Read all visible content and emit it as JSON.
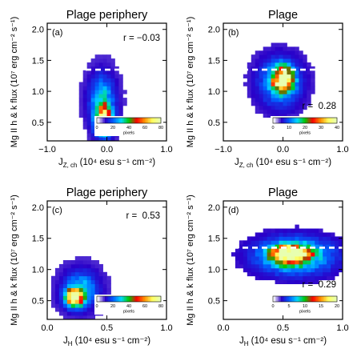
{
  "figure": {
    "background": "#ffffff",
    "dash_color": "#ffffff",
    "colormap": [
      "#ffffff",
      "#2a00c8",
      "#0060ff",
      "#00d8ff",
      "#00c800",
      "#ff0000",
      "#ff9000",
      "#ffff60",
      "#e8ffb0"
    ]
  },
  "chart_data": [
    {
      "type": "heatmap",
      "id": "a",
      "title": "Plage periphery",
      "panel_label": "(a)",
      "annotation": "r = −0.03",
      "xlabel": "J_Z,ch (10^4 esu s^-1 cm^-2)",
      "xlabel_main": "J",
      "xlabel_sub": "Z, ch",
      "xlabel_rest": " (10⁴ esu s⁻¹ cm⁻²)",
      "ylabel": "Mg II h & k flux (10⁷ erg cm⁻² s⁻¹)",
      "xlim": [
        -1.0,
        1.0
      ],
      "ylim": [
        0.2,
        2.1
      ],
      "xticks": [
        -1.0,
        0.0,
        1.0
      ],
      "xticklabels": [
        "−1.0",
        "0.0",
        "1.0"
      ],
      "yticks": [
        0.5,
        1.0,
        1.5,
        2.0
      ],
      "yticklabels": [
        "0.5",
        "1.0",
        "1.5",
        "2.0"
      ],
      "threshold_y": 1.35,
      "colorbar": {
        "ticks": [
          0,
          20,
          40,
          60,
          80
        ],
        "label": "pixels"
      },
      "density": {
        "peaks": [
          {
            "x": -0.05,
            "y": 0.52,
            "sx": 0.09,
            "sy": 0.14,
            "amp": 80
          },
          {
            "x": -0.08,
            "y": 0.85,
            "sx": 0.13,
            "sy": 0.25,
            "amp": 28
          }
        ]
      }
    },
    {
      "type": "heatmap",
      "id": "b",
      "title": "Plage",
      "panel_label": "(b)",
      "annotation": "r =  0.28",
      "xlabel": "J_Z,ch (10^4 esu s^-1 cm^-2)",
      "xlabel_main": "J",
      "xlabel_sub": "Z, ch",
      "xlabel_rest": " (10⁴ esu s⁻¹ cm⁻²)",
      "ylabel": "Mg II h & k flux (10⁷ erg cm⁻² s⁻¹)",
      "xlim": [
        -1.0,
        1.0
      ],
      "ylim": [
        0.2,
        2.1
      ],
      "xticks": [
        -1.0,
        0.0,
        1.0
      ],
      "xticklabels": [
        "−1.0",
        "0.0",
        "1.0"
      ],
      "yticks": [
        0.5,
        1.0,
        1.5,
        2.0
      ],
      "yticklabels": [
        "0.5",
        "1.0",
        "1.5",
        "2.0"
      ],
      "threshold_y": 1.35,
      "colorbar": {
        "ticks": [
          0,
          10,
          20,
          30,
          40
        ],
        "label": "pixels"
      },
      "density": {
        "peaks": [
          {
            "x": 0.0,
            "y": 1.2,
            "sx": 0.11,
            "sy": 0.13,
            "amp": 40
          },
          {
            "x": -0.05,
            "y": 1.15,
            "sx": 0.22,
            "sy": 0.24,
            "amp": 12
          }
        ]
      }
    },
    {
      "type": "heatmap",
      "id": "c",
      "title": "Plage periphery",
      "panel_label": "(c)",
      "annotation": "r =  0.53",
      "xlabel": "J_H (10^4 esu s^-1 cm^-2)",
      "xlabel_main": "J",
      "xlabel_sub": "H",
      "xlabel_rest": " (10⁴ esu s⁻¹ cm⁻²)",
      "ylabel": "Mg II h & k flux (10⁷ erg cm⁻² s⁻¹)",
      "xlim": [
        0.0,
        1.0
      ],
      "ylim": [
        0.2,
        2.1
      ],
      "xticks": [
        0.0,
        0.5,
        1.0
      ],
      "xticklabels": [
        "0.0",
        "0.5",
        "1.0"
      ],
      "yticks": [
        0.5,
        1.0,
        1.5,
        2.0
      ],
      "yticklabels": [
        "0.5",
        "1.0",
        "1.5",
        "2.0"
      ],
      "threshold_y": 1.35,
      "colorbar": {
        "ticks": [
          0,
          20,
          40,
          60,
          80
        ],
        "label": "pixels"
      },
      "density": {
        "peaks": [
          {
            "x": 0.23,
            "y": 0.55,
            "sx": 0.05,
            "sy": 0.09,
            "amp": 80
          },
          {
            "x": 0.28,
            "y": 0.68,
            "sx": 0.09,
            "sy": 0.18,
            "amp": 25
          }
        ]
      }
    },
    {
      "type": "heatmap",
      "id": "d",
      "title": "Plage",
      "panel_label": "(d)",
      "annotation": "r =  0.29",
      "xlabel": "J_H (10^4 esu s^-1 cm^-2)",
      "xlabel_main": "J",
      "xlabel_sub": "H",
      "xlabel_rest": " (10⁴ esu s⁻¹ cm⁻²)",
      "ylabel": "Mg II h & k flux (10⁷ erg cm⁻² s⁻¹)",
      "xlim": [
        0.0,
        1.0
      ],
      "ylim": [
        0.2,
        2.1
      ],
      "xticks": [
        0.0,
        0.5,
        1.0
      ],
      "xticklabels": [
        "0.0",
        "0.5",
        "1.0"
      ],
      "yticks": [
        0.5,
        1.0,
        1.5,
        2.0
      ],
      "yticklabels": [
        "0.5",
        "1.0",
        "1.5",
        "2.0"
      ],
      "threshold_y": 1.35,
      "colorbar": {
        "ticks": [
          0,
          5,
          10,
          15,
          20
        ],
        "label": "pixels"
      },
      "density": {
        "peaks": [
          {
            "x": 0.55,
            "y": 1.25,
            "sx": 0.1,
            "sy": 0.09,
            "amp": 20
          },
          {
            "x": 0.6,
            "y": 1.22,
            "sx": 0.2,
            "sy": 0.18,
            "amp": 9
          }
        ]
      }
    }
  ]
}
